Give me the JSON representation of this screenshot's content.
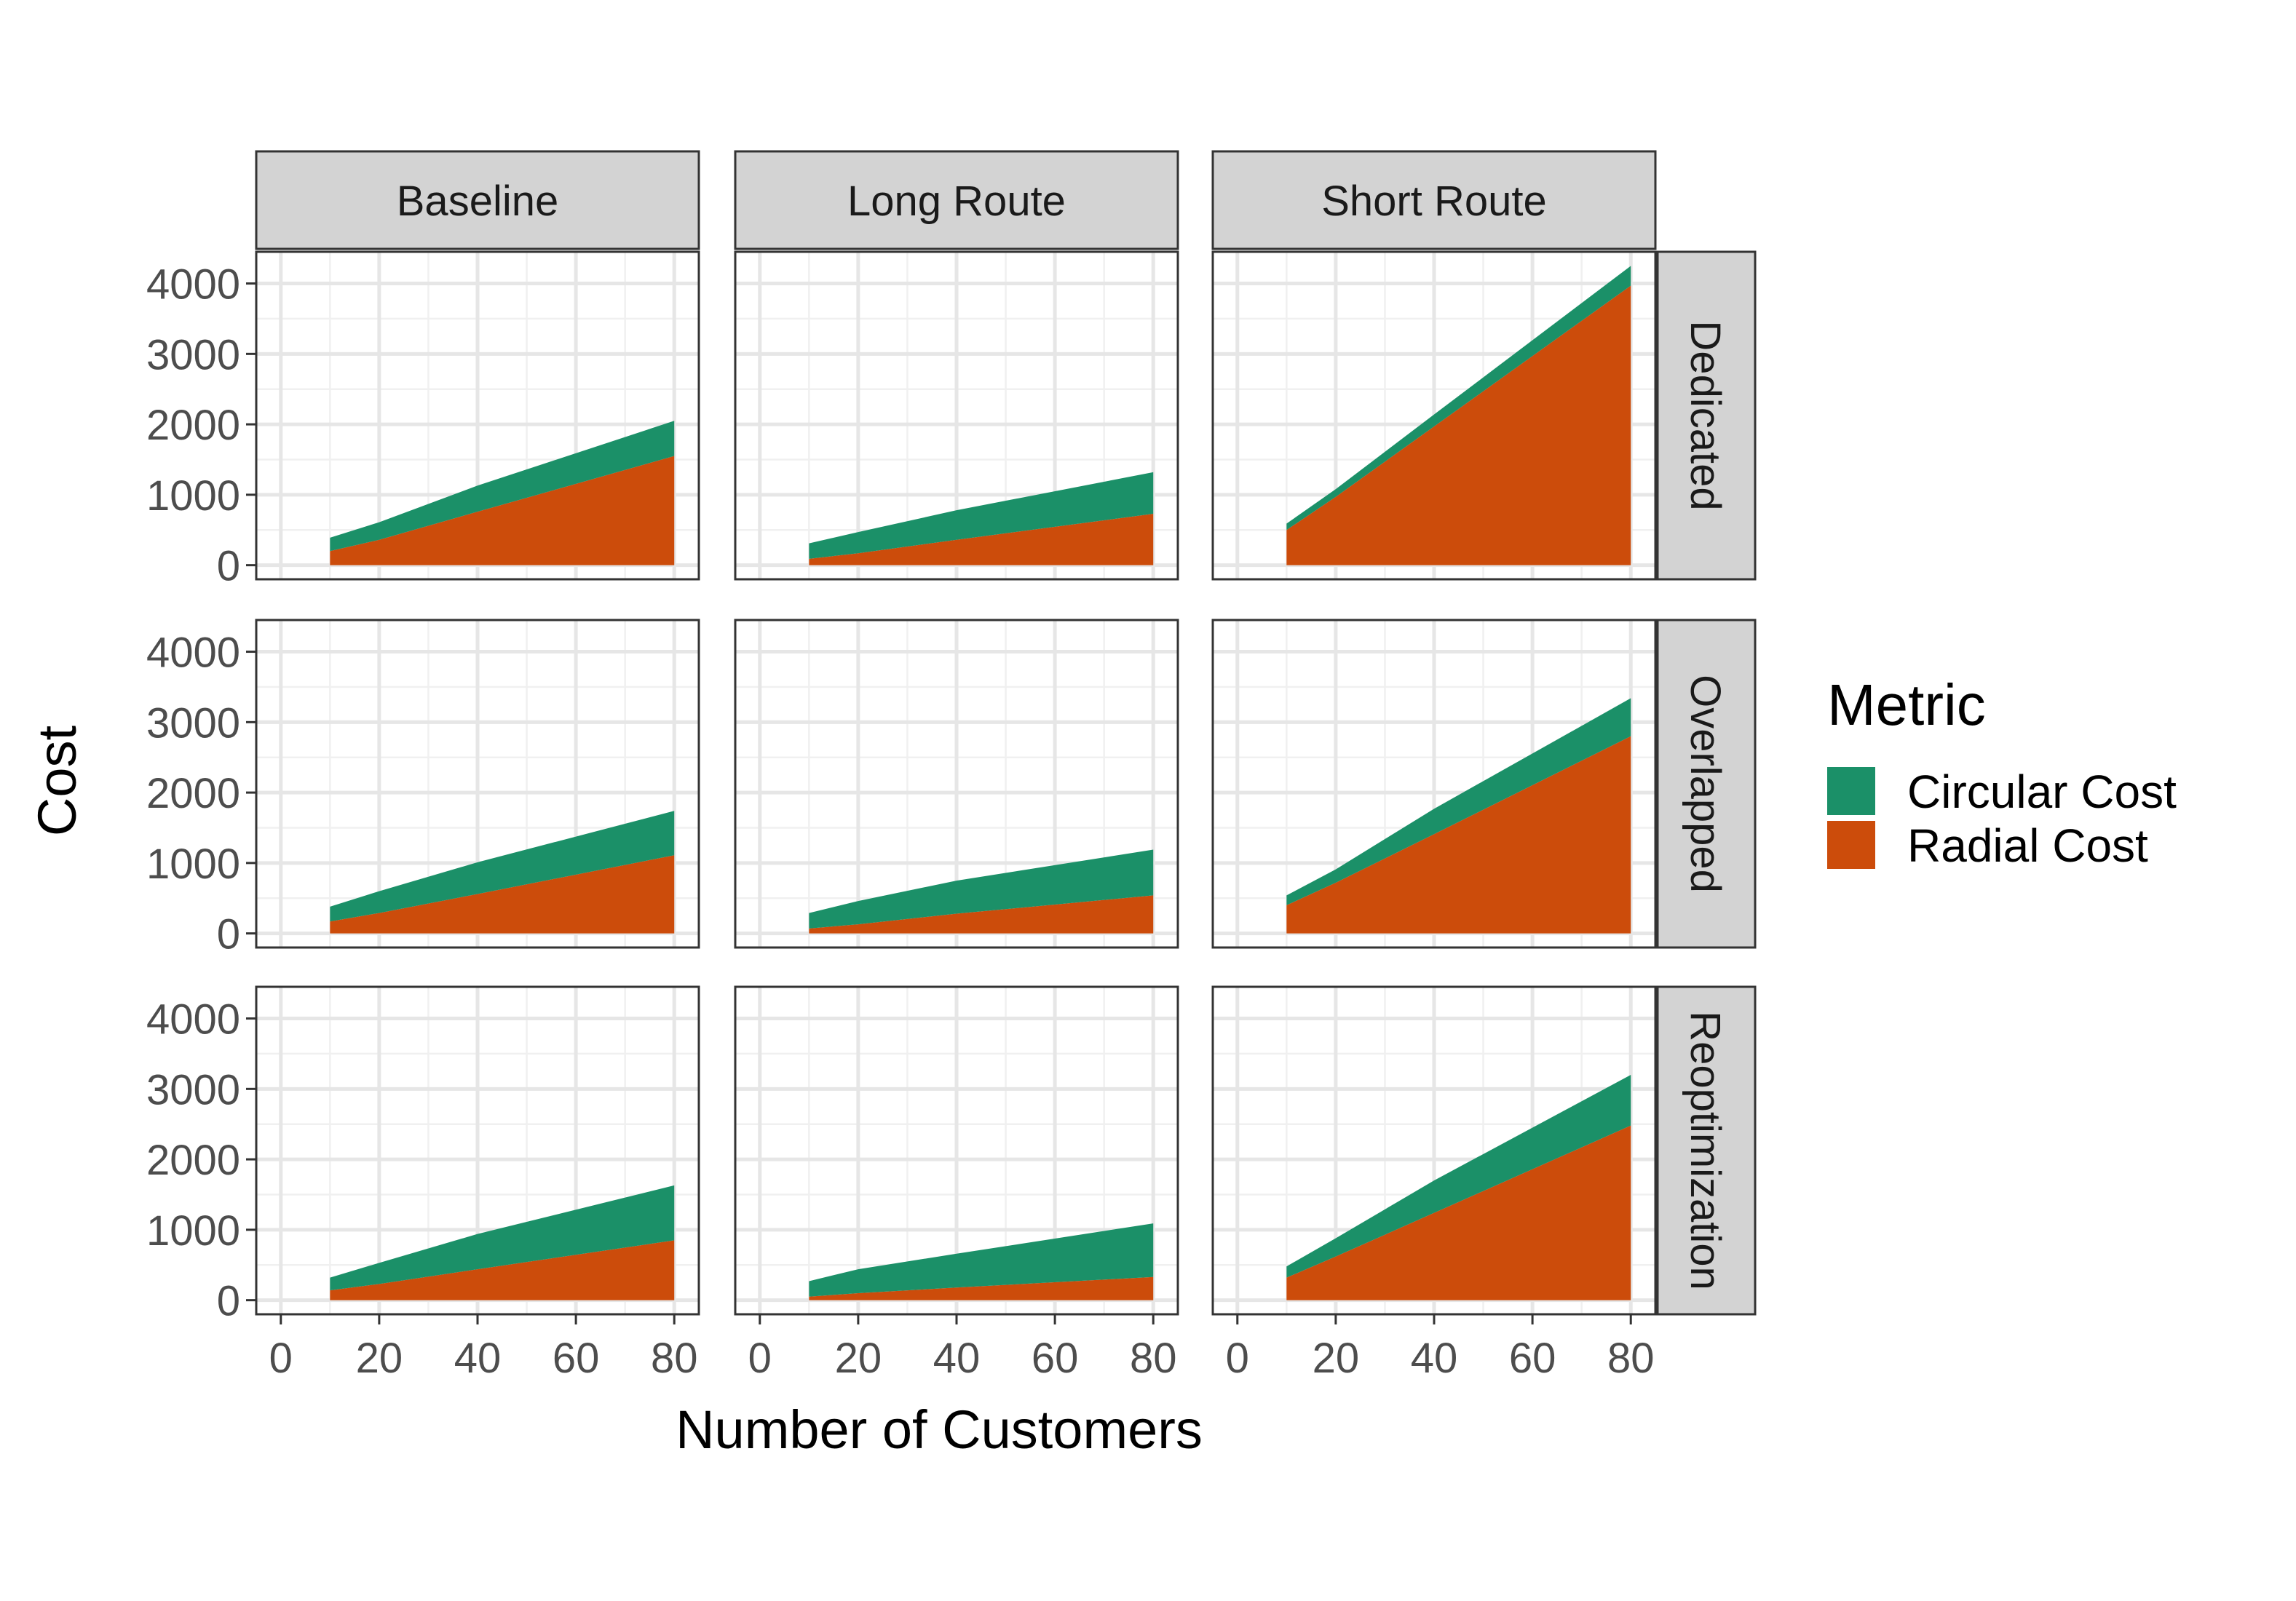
{
  "chart_data": {
    "type": "area",
    "stacked": true,
    "xlabel": "Number of Customers",
    "ylabel": "Cost",
    "xlim": [
      -5,
      85
    ],
    "ylim": [
      -200,
      4450
    ],
    "x_ticks": [
      0,
      20,
      40,
      60,
      80
    ],
    "y_ticks": [
      0,
      1000,
      2000,
      3000,
      4000
    ],
    "grid": true,
    "legend": {
      "title": "Metric",
      "position": "right",
      "entries": [
        {
          "name": "Circular Cost",
          "color": "#1b9068"
        },
        {
          "name": "Radial Cost",
          "color": "#cc4c0b"
        }
      ]
    },
    "columns": [
      "Baseline",
      "Long Route",
      "Short Route"
    ],
    "rows": [
      "Dedicated",
      "Overlapped",
      "Reoptimization"
    ],
    "x": [
      10,
      20,
      40,
      80
    ],
    "panels": [
      {
        "column": "Baseline",
        "row": "Dedicated",
        "series": [
          {
            "name": "Radial Cost",
            "values": [
              200,
              360,
              760,
              1550
            ]
          },
          {
            "name": "Circular Cost",
            "values": [
              190,
              250,
              370,
              500
            ]
          }
        ]
      },
      {
        "column": "Long Route",
        "row": "Dedicated",
        "series": [
          {
            "name": "Radial Cost",
            "values": [
              90,
              170,
              360,
              730
            ]
          },
          {
            "name": "Circular Cost",
            "values": [
              220,
              300,
              420,
              590
            ]
          }
        ]
      },
      {
        "column": "Short Route",
        "row": "Dedicated",
        "series": [
          {
            "name": "Radial Cost",
            "values": [
              500,
              970,
              1970,
              3970
            ]
          },
          {
            "name": "Circular Cost",
            "values": [
              90,
              110,
              170,
              280
            ]
          }
        ]
      },
      {
        "column": "Baseline",
        "row": "Overlapped",
        "series": [
          {
            "name": "Radial Cost",
            "values": [
              170,
              290,
              560,
              1110
            ]
          },
          {
            "name": "Circular Cost",
            "values": [
              210,
              310,
              450,
              630
            ]
          }
        ]
      },
      {
        "column": "Long Route",
        "row": "Overlapped",
        "series": [
          {
            "name": "Radial Cost",
            "values": [
              70,
              130,
              280,
              540
            ]
          },
          {
            "name": "Circular Cost",
            "values": [
              220,
              330,
              470,
              650
            ]
          }
        ]
      },
      {
        "column": "Short Route",
        "row": "Overlapped",
        "series": [
          {
            "name": "Radial Cost",
            "values": [
              400,
              720,
              1410,
              2800
            ]
          },
          {
            "name": "Circular Cost",
            "values": [
              140,
              190,
              360,
              540
            ]
          }
        ]
      },
      {
        "column": "Baseline",
        "row": "Reoptimization",
        "series": [
          {
            "name": "Radial Cost",
            "values": [
              140,
              230,
              440,
              850
            ]
          },
          {
            "name": "Circular Cost",
            "values": [
              180,
              300,
              500,
              780
            ]
          }
        ]
      },
      {
        "column": "Long Route",
        "row": "Reoptimization",
        "series": [
          {
            "name": "Radial Cost",
            "values": [
              50,
              100,
              180,
              330
            ]
          },
          {
            "name": "Circular Cost",
            "values": [
              220,
              340,
              480,
              760
            ]
          }
        ]
      },
      {
        "column": "Short Route",
        "row": "Reoptimization",
        "series": [
          {
            "name": "Radial Cost",
            "values": [
              320,
              620,
              1240,
              2480
            ]
          },
          {
            "name": "Circular Cost",
            "values": [
              160,
              260,
              460,
              720
            ]
          }
        ]
      }
    ]
  }
}
